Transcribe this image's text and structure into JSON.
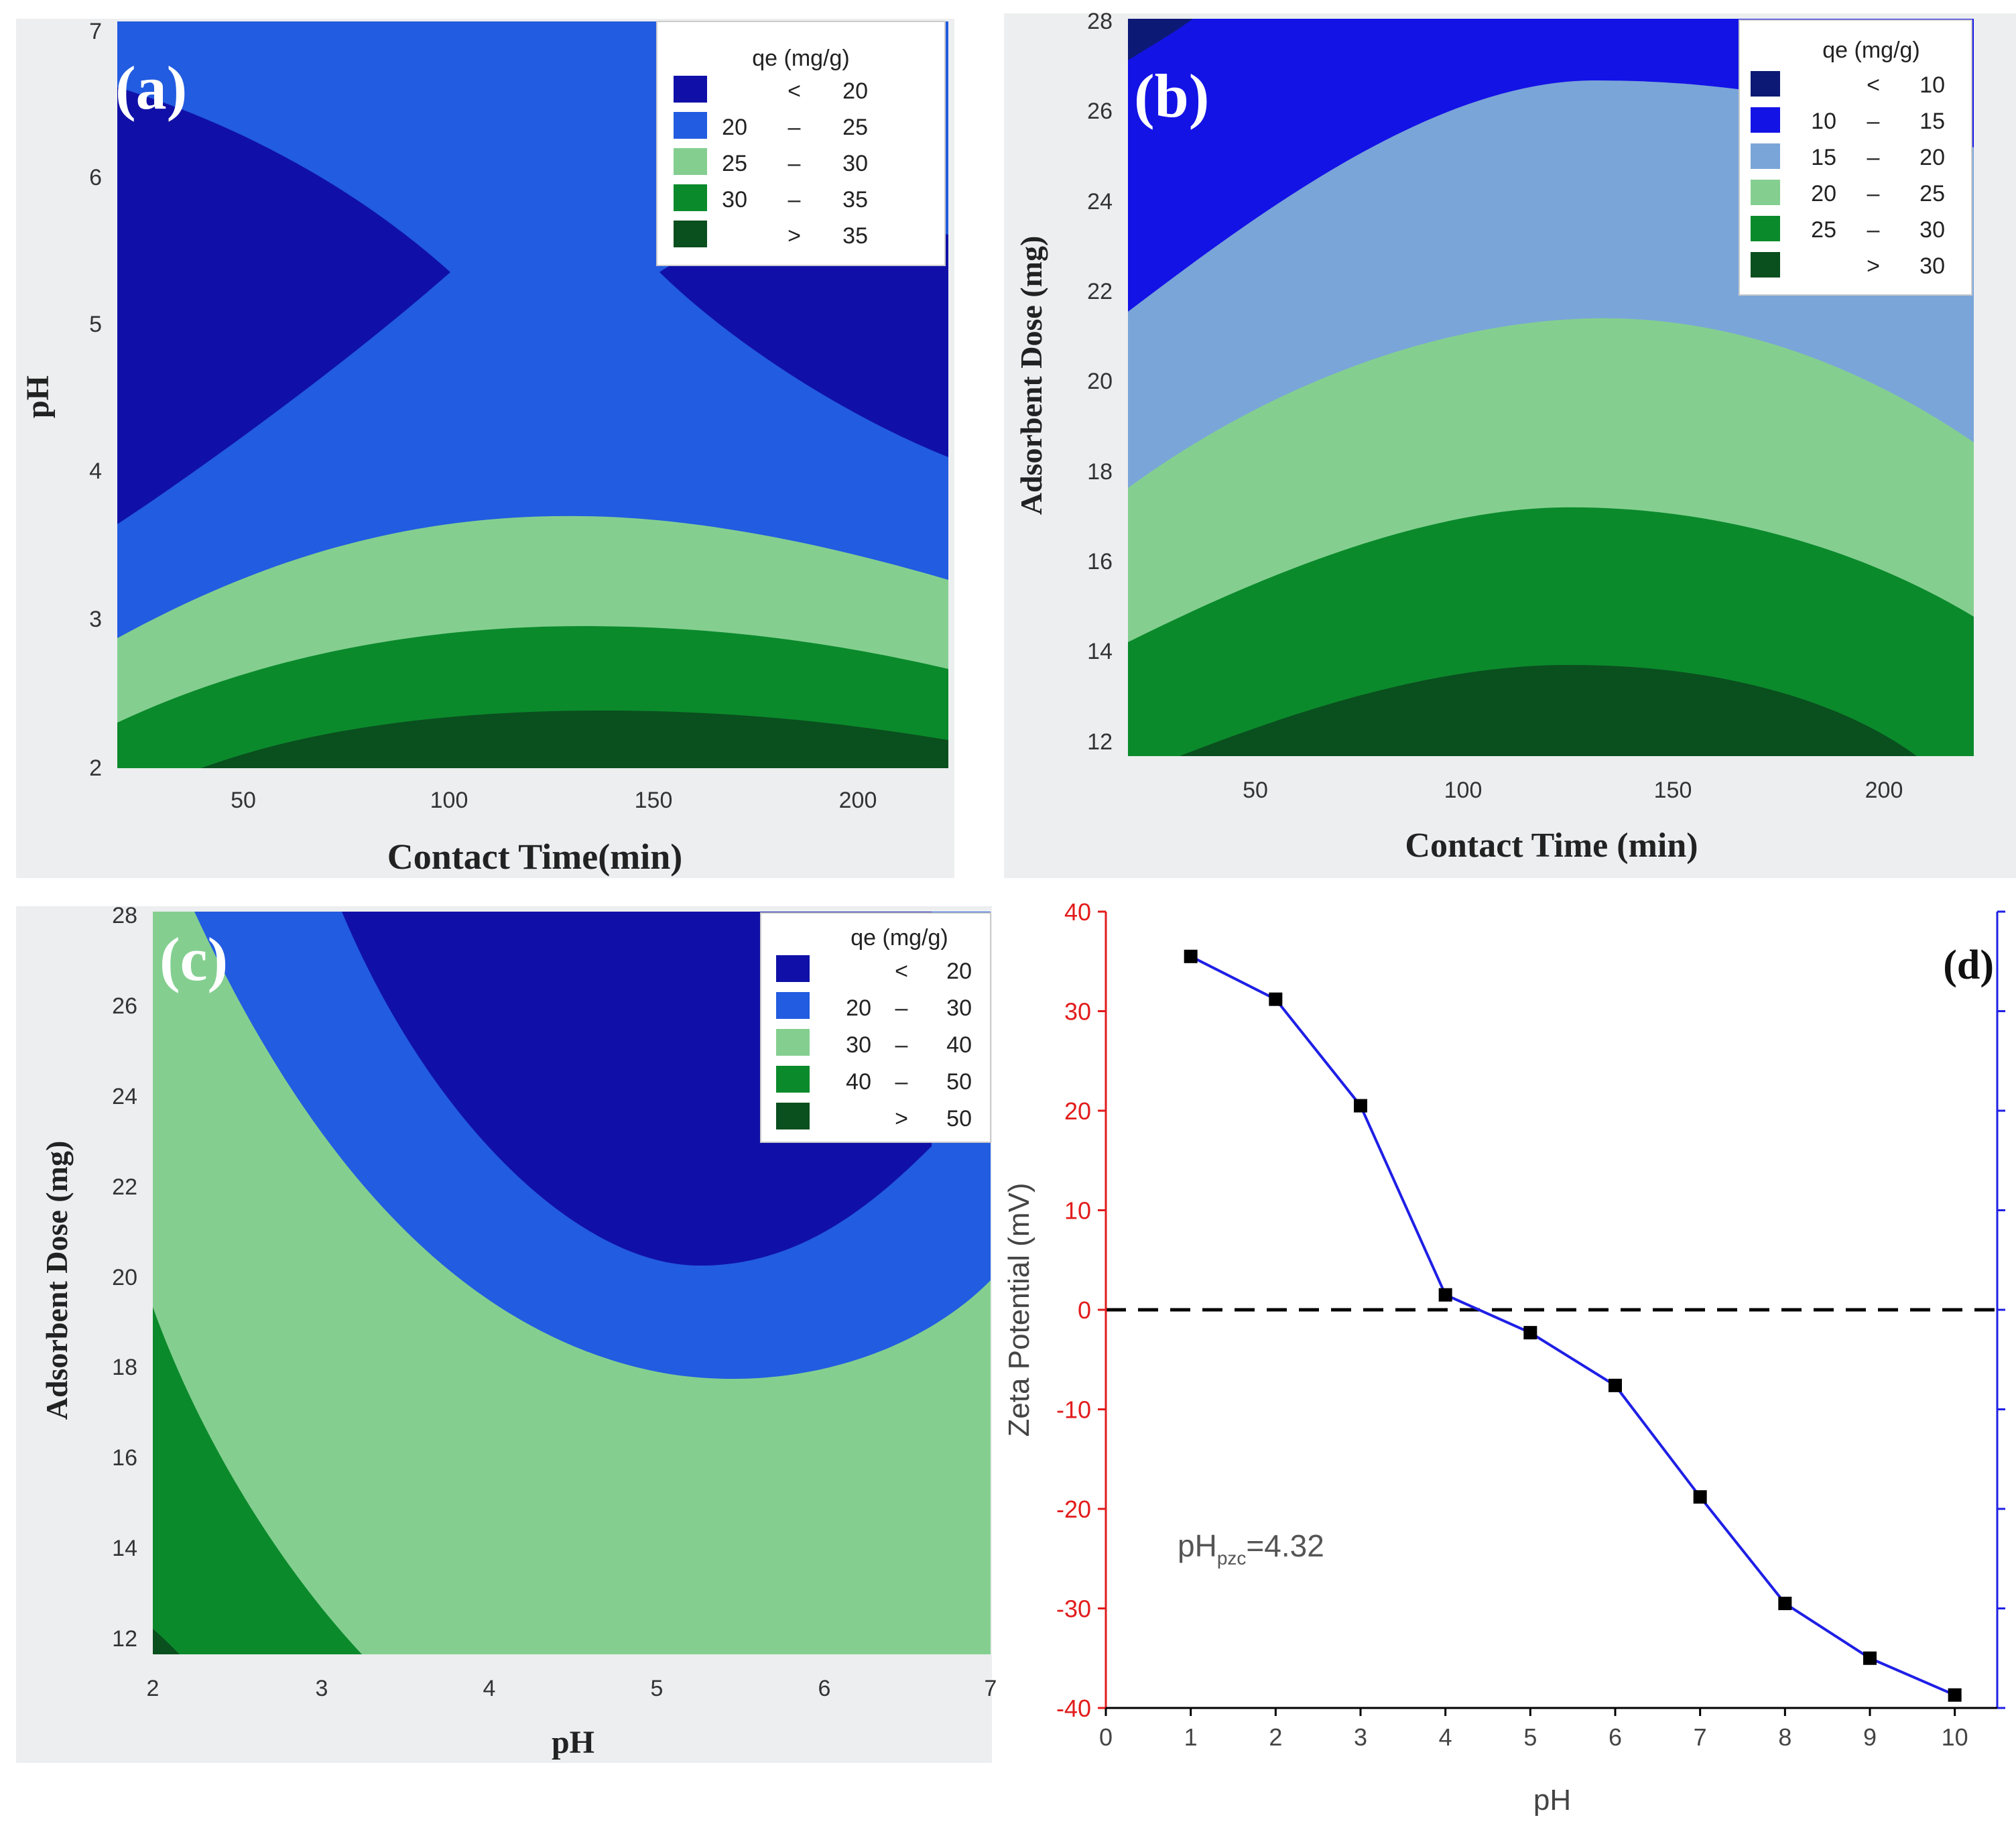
{
  "figure": {
    "panels": [
      "(a)",
      "(b)",
      "(c)",
      "(d)"
    ]
  },
  "chart_data": [
    {
      "panel": "(a)",
      "type": "contour",
      "xlabel": "Contact Time(min)",
      "ylabel": "pH",
      "xlim": [
        20,
        220
      ],
      "ylim": [
        2,
        7
      ],
      "xticks": [
        "50",
        "100",
        "150",
        "200"
      ],
      "yticks": [
        "2",
        "3",
        "4",
        "5",
        "6",
        "7"
      ],
      "legend": {
        "title": "qe (mg/g)",
        "entries": [
          {
            "op": "<",
            "lo": "",
            "hi": "20",
            "color": "#1010a8"
          },
          {
            "op": "–",
            "lo": "20",
            "hi": "25",
            "color": "#225ce0"
          },
          {
            "op": "–",
            "lo": "25",
            "hi": "30",
            "color": "#84cf90"
          },
          {
            "op": "–",
            "lo": "30",
            "hi": "35",
            "color": "#0b8a2c"
          },
          {
            "op": ">",
            "lo": "",
            "hi": "35",
            "color": "#0a4f1e"
          }
        ]
      }
    },
    {
      "panel": "(b)",
      "type": "contour",
      "xlabel": "Contact Time (min)",
      "ylabel": "Adsorbent Dose (mg)",
      "xlim": [
        20,
        220
      ],
      "ylim": [
        11.6,
        28
      ],
      "xticks": [
        "50",
        "100",
        "150",
        "200"
      ],
      "yticks": [
        "12",
        "14",
        "16",
        "18",
        "20",
        "22",
        "24",
        "26",
        "28"
      ],
      "legend": {
        "title": "qe (mg/g)",
        "entries": [
          {
            "op": "<",
            "lo": "",
            "hi": "10",
            "color": "#0c1a75"
          },
          {
            "op": "–",
            "lo": "10",
            "hi": "15",
            "color": "#1313e6"
          },
          {
            "op": "–",
            "lo": "15",
            "hi": "20",
            "color": "#7aa5d8"
          },
          {
            "op": "–",
            "lo": "20",
            "hi": "25",
            "color": "#84cf90"
          },
          {
            "op": "–",
            "lo": "25",
            "hi": "30",
            "color": "#0b8a2c"
          },
          {
            "op": ">",
            "lo": "",
            "hi": "30",
            "color": "#0a4f1e"
          }
        ]
      }
    },
    {
      "panel": "(c)",
      "type": "contour",
      "xlabel": "pH",
      "ylabel": "Adsorbent Dose (mg)",
      "xlim": [
        2,
        7
      ],
      "ylim": [
        11.6,
        28
      ],
      "xticks": [
        "2",
        "3",
        "4",
        "5",
        "6",
        "7"
      ],
      "yticks": [
        "12",
        "14",
        "16",
        "18",
        "20",
        "22",
        "24",
        "26",
        "28"
      ],
      "legend": {
        "title": "qe (mg/g)",
        "entries": [
          {
            "op": "<",
            "lo": "",
            "hi": "20",
            "color": "#1010a8"
          },
          {
            "op": "–",
            "lo": "20",
            "hi": "30",
            "color": "#225ce0"
          },
          {
            "op": "–",
            "lo": "30",
            "hi": "40",
            "color": "#84cf90"
          },
          {
            "op": "–",
            "lo": "40",
            "hi": "50",
            "color": "#0b8a2c"
          },
          {
            "op": ">",
            "lo": "",
            "hi": "50",
            "color": "#0a4f1e"
          }
        ]
      }
    },
    {
      "panel": "(d)",
      "type": "line",
      "xlabel": "pH",
      "ylabel": "Zeta Potential (mV)",
      "xlim": [
        0,
        10.5
      ],
      "ylim": [
        -40,
        40
      ],
      "xticks": [
        "0",
        "1",
        "2",
        "3",
        "4",
        "5",
        "6",
        "7",
        "8",
        "9",
        "10"
      ],
      "yticks": [
        "-40",
        "-30",
        "-20",
        "-10",
        "0",
        "10",
        "20",
        "30",
        "40"
      ],
      "x": [
        1,
        2,
        3,
        4,
        5,
        6,
        7,
        8,
        9,
        10
      ],
      "y": [
        35.5,
        31.2,
        20.5,
        1.5,
        -2.3,
        -7.6,
        -18.8,
        -29.5,
        -35,
        -38.7
      ],
      "zero_line": 0,
      "annotation": {
        "base": "pH",
        "sub": "pzc",
        "rest": "=4.32"
      },
      "colors": {
        "line": "#1f1fe6",
        "marker": "#000000",
        "left_axis": "#e21b1b",
        "right_axis": "#1f1fe6"
      }
    }
  ]
}
